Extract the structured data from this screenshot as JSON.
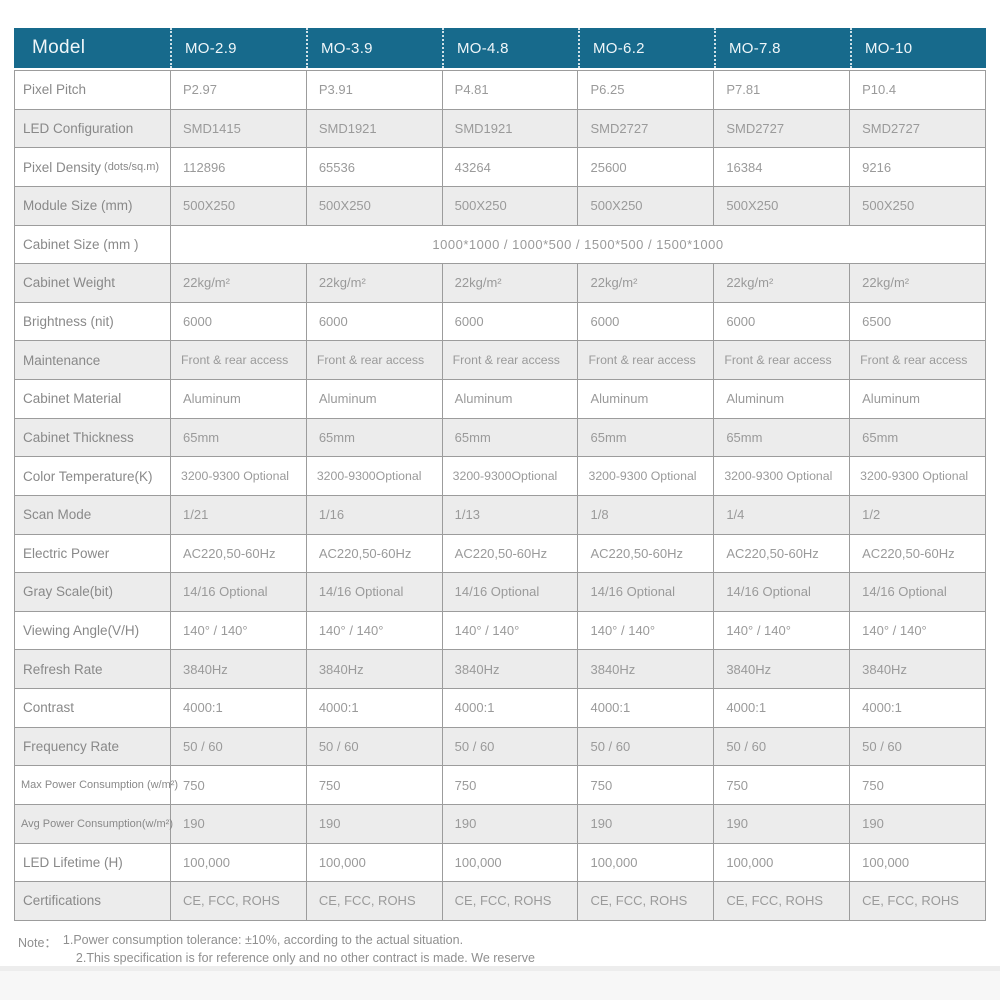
{
  "colors": {
    "header_bg": "#176a8c",
    "header_text": "#eff6f9",
    "row_alt_bg": "#ececec",
    "border": "#9c9c9c",
    "label_text": "#898989",
    "value_text": "#9a9a9a"
  },
  "table": {
    "header": {
      "label": "Model",
      "columns": [
        "MO-2.9",
        "MO-3.9",
        "MO-4.8",
        "MO-6.2",
        "MO-7.8",
        "MO-10"
      ]
    },
    "rows": [
      {
        "label": "Pixel Pitch",
        "values": [
          "P2.97",
          "P3.91",
          "P4.81",
          "P6.25",
          "P7.81",
          "P10.4"
        ]
      },
      {
        "label": "LED Configuration",
        "values": [
          "SMD1415",
          "SMD1921",
          "SMD1921",
          "SMD2727",
          "SMD2727",
          "SMD2727"
        ]
      },
      {
        "label": "Pixel Density",
        "label_suffix": "(dots/sq.m)",
        "values": [
          "112896",
          "65536",
          "43264",
          "25600",
          "16384",
          "9216"
        ]
      },
      {
        "label": "Module Size (mm)",
        "values": [
          "500X250",
          "500X250",
          "500X250",
          "500X250",
          "500X250",
          "500X250"
        ]
      },
      {
        "label": "Cabinet Size (mm )",
        "merged": "1000*1000 / 1000*500 / 1500*500 / 1500*1000"
      },
      {
        "label": "Cabinet Weight",
        "values": [
          "22kg/m²",
          "22kg/m²",
          "22kg/m²",
          "22kg/m²",
          "22kg/m²",
          "22kg/m²"
        ]
      },
      {
        "label": "Brightness (nit)",
        "values": [
          "6000",
          "6000",
          "6000",
          "6000",
          "6000",
          "6500"
        ]
      },
      {
        "label": "Maintenance",
        "small_values": true,
        "values": [
          "Front & rear access",
          "Front & rear access",
          "Front & rear access",
          "Front & rear access",
          "Front & rear access",
          "Front & rear access"
        ]
      },
      {
        "label": "Cabinet Material",
        "values": [
          "Aluminum",
          "Aluminum",
          "Aluminum",
          "Aluminum",
          "Aluminum",
          "Aluminum"
        ]
      },
      {
        "label": "Cabinet Thickness",
        "values": [
          "65mm",
          "65mm",
          "65mm",
          "65mm",
          "65mm",
          "65mm"
        ]
      },
      {
        "label": "Color Temperature(K)",
        "small_values": true,
        "values": [
          "3200-9300 Optional",
          "3200-9300Optional",
          "3200-9300Optional",
          "3200-9300 Optional",
          "3200-9300 Optional",
          "3200-9300 Optional"
        ]
      },
      {
        "label": "Scan Mode",
        "values": [
          "1/21",
          "1/16",
          "1/13",
          "1/8",
          "1/4",
          "1/2"
        ]
      },
      {
        "label": "Electric Power",
        "values": [
          "AC220,50-60Hz",
          "AC220,50-60Hz",
          "AC220,50-60Hz",
          "AC220,50-60Hz",
          "AC220,50-60Hz",
          "AC220,50-60Hz"
        ]
      },
      {
        "label": "Gray Scale(bit)",
        "values": [
          "14/16 Optional",
          "14/16 Optional",
          "14/16 Optional",
          "14/16 Optional",
          "14/16 Optional",
          "14/16 Optional"
        ]
      },
      {
        "label": "Viewing Angle(V/H)",
        "values": [
          "140° / 140°",
          "140° / 140°",
          "140° / 140°",
          "140° / 140°",
          "140° / 140°",
          "140° / 140°"
        ]
      },
      {
        "label": "Refresh Rate",
        "values": [
          "3840Hz",
          "3840Hz",
          "3840Hz",
          "3840Hz",
          "3840Hz",
          "3840Hz"
        ]
      },
      {
        "label": "Contrast",
        "values": [
          "4000:1",
          "4000:1",
          "4000:1",
          "4000:1",
          "4000:1",
          "4000:1"
        ]
      },
      {
        "label": "Frequency Rate",
        "values": [
          "50 / 60",
          "50 / 60",
          "50 / 60",
          "50 / 60",
          "50 / 60",
          "50 / 60"
        ]
      },
      {
        "label": "Max Power Consumption (w/m²)",
        "small_label": true,
        "values": [
          "750",
          "750",
          "750",
          "750",
          "750",
          "750"
        ]
      },
      {
        "label": "Avg Power Consumption(w/m²)",
        "small_label": true,
        "values": [
          "190",
          "190",
          "190",
          "190",
          "190",
          "190"
        ]
      },
      {
        "label": "LED Lifetime (H)",
        "values": [
          "100,000",
          "100,000",
          "100,000",
          "100,000",
          "100,000",
          "100,000"
        ]
      },
      {
        "label": "Certifications",
        "values": [
          "CE, FCC, ROHS",
          "CE, FCC, ROHS",
          "CE, FCC, ROHS",
          "CE, FCC, ROHS",
          "CE, FCC, ROHS",
          "CE, FCC, ROHS"
        ]
      }
    ]
  },
  "note": {
    "label": "Note：",
    "lines": [
      "1.Power consumption tolerance: ±10%, according to the actual situation.",
      "2.This specification is for reference only and no other contract is made. We reserve"
    ]
  }
}
